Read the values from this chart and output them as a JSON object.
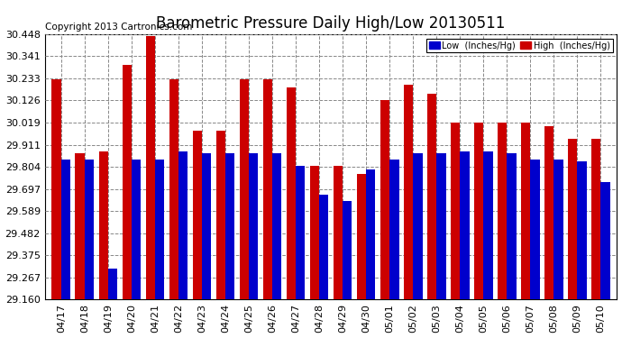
{
  "title": "Barometric Pressure Daily High/Low 20130511",
  "copyright": "Copyright 2013 Cartronics.com",
  "legend_low": "Low  (Inches/Hg)",
  "legend_high": "High  (Inches/Hg)",
  "dates": [
    "04/17",
    "04/18",
    "04/19",
    "04/20",
    "04/21",
    "04/22",
    "04/23",
    "04/24",
    "04/25",
    "04/26",
    "04/27",
    "04/28",
    "04/29",
    "04/30",
    "05/01",
    "05/02",
    "05/03",
    "05/04",
    "05/05",
    "05/06",
    "05/07",
    "05/08",
    "05/09",
    "05/10"
  ],
  "low": [
    29.84,
    29.84,
    29.31,
    29.84,
    29.84,
    29.88,
    29.87,
    29.87,
    29.87,
    29.87,
    29.81,
    29.67,
    29.64,
    29.79,
    29.84,
    29.87,
    29.87,
    29.88,
    29.88,
    29.87,
    29.84,
    29.84,
    29.83,
    29.73
  ],
  "high": [
    30.23,
    29.87,
    29.88,
    30.3,
    30.44,
    30.23,
    29.98,
    29.98,
    30.23,
    30.23,
    30.19,
    29.81,
    29.81,
    29.77,
    30.13,
    30.2,
    30.16,
    30.02,
    30.02,
    30.02,
    30.02,
    30.0,
    29.94,
    29.94
  ],
  "ylim_min": 29.16,
  "ylim_max": 30.448,
  "yticks": [
    29.16,
    29.267,
    29.375,
    29.482,
    29.589,
    29.697,
    29.804,
    29.911,
    30.019,
    30.126,
    30.233,
    30.341,
    30.448
  ],
  "low_color": "#0000cc",
  "high_color": "#cc0000",
  "bg_color": "#ffffff",
  "grid_color": "#888888",
  "bar_width": 0.4,
  "title_fontsize": 12,
  "tick_fontsize": 8,
  "copyright_fontsize": 7.5
}
